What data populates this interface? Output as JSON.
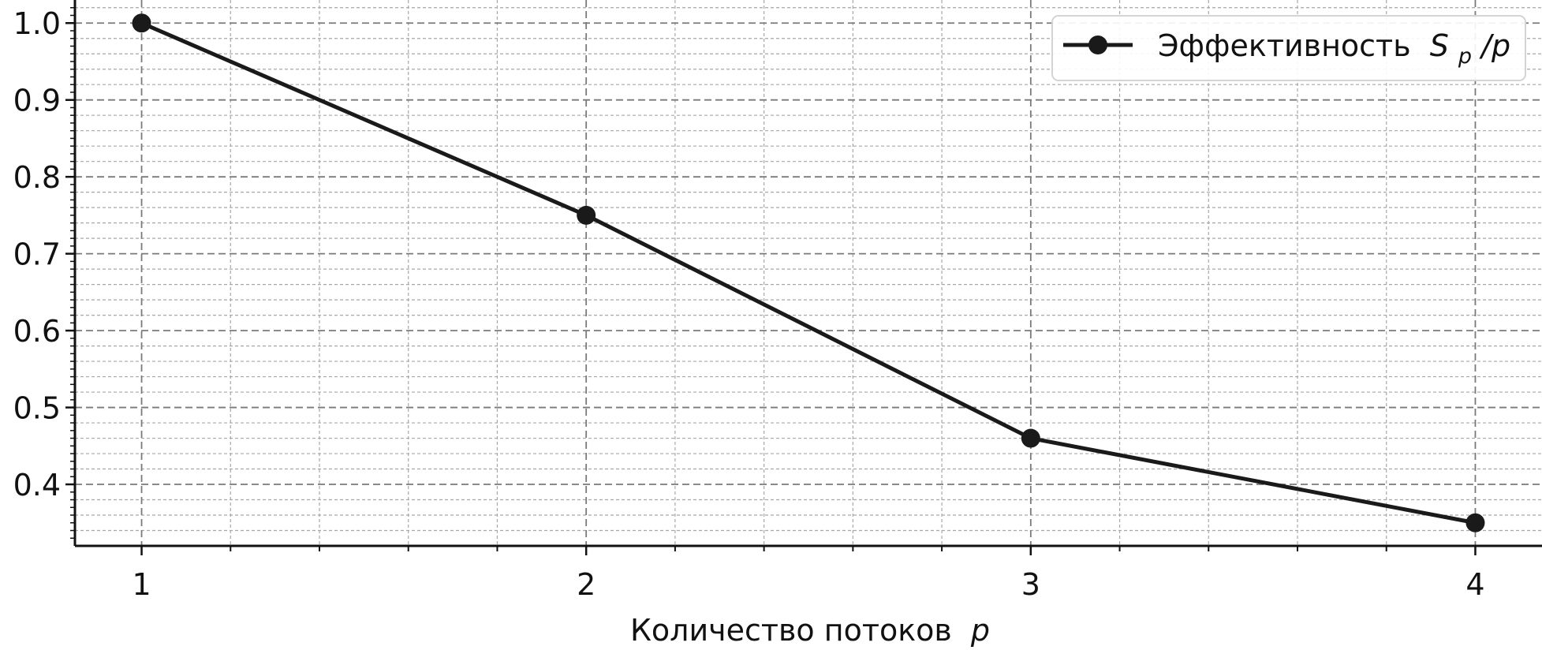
{
  "chart_data": {
    "type": "line",
    "title": "",
    "xlabel": "Количество потоков",
    "xlabel_var": "p",
    "ylabel": "",
    "x": [
      1,
      2,
      3,
      4
    ],
    "xlim": [
      0.85,
      4.15
    ],
    "ylim": [
      0.32,
      1.03
    ],
    "x_ticks": [
      "1",
      "2",
      "3",
      "4"
    ],
    "y_ticks": [
      "0.4",
      "0.5",
      "0.6",
      "0.7",
      "0.8",
      "0.9",
      "1.0"
    ],
    "grid": true,
    "minor_grid": true,
    "legend_position": "top-right",
    "series": [
      {
        "name": "Эффективность",
        "name_math_base": "S",
        "name_math_sub": "p",
        "name_math_tail": "/p",
        "values": [
          1.0,
          0.75,
          0.46,
          0.35
        ],
        "color": "#1a1a1a",
        "marker": "circle"
      }
    ]
  }
}
